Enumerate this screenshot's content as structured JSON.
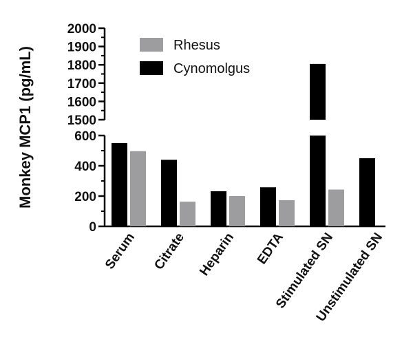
{
  "chart_data": {
    "type": "bar",
    "title": "",
    "xlabel": "",
    "ylabel": "Monkey MCP1 (pg/mL)",
    "categories": [
      "Serum",
      "Citrate",
      "Heparin",
      "EDTA",
      "Stimulated SN",
      "Unstimulated SN"
    ],
    "series": [
      {
        "name": "Cynomolgus",
        "color": "#000000",
        "values": [
          550,
          440,
          232,
          258,
          1805,
          450
        ]
      },
      {
        "name": "Rhesus",
        "color": "#9d9d9f",
        "values": [
          497,
          163,
          200,
          173,
          243,
          null
        ]
      }
    ],
    "axis_broken": true,
    "lower_segment": {
      "ylim": [
        0,
        600
      ],
      "ticks": [
        0,
        200,
        400,
        600
      ]
    },
    "upper_segment": {
      "ylim": [
        1500,
        2000
      ],
      "ticks": [
        1500,
        1600,
        1700,
        1800,
        1900,
        2000
      ]
    },
    "legend": {
      "placement": "top-left",
      "entries": [
        "Rhesus",
        "Cynomolgus"
      ]
    },
    "grid": false
  }
}
